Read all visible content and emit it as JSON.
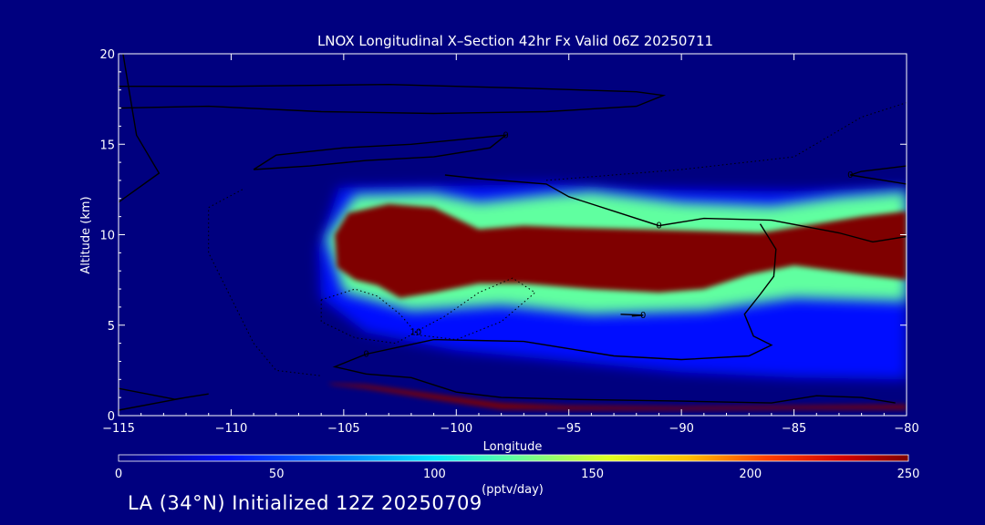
{
  "colors": {
    "background": "#00007f",
    "text": "#ffffff",
    "contour": "#000000"
  },
  "chart_data": {
    "type": "heatmap",
    "title": "LNOX Longitudinal X–Section 42hr  Fx Valid 06Z 20250711",
    "xlabel": "Longitude",
    "ylabel": "Altitude (km)",
    "xlim": [
      -115,
      -80
    ],
    "ylim": [
      0,
      20
    ],
    "x_ticks": [
      -115,
      -110,
      -105,
      -100,
      -95,
      -90,
      -85,
      -80
    ],
    "x_tick_labels": [
      "−115",
      "−110",
      "−105",
      "−100",
      "−95",
      "−90",
      "−85",
      "−80"
    ],
    "y_ticks": [
      0,
      5,
      10,
      15,
      20
    ],
    "y_tick_labels": [
      "0",
      "5",
      "10",
      "15",
      "20"
    ],
    "colorbar": {
      "min": 0,
      "max": 250,
      "ticks": [
        0,
        50,
        100,
        150,
        200,
        250
      ],
      "tick_labels": [
        "0",
        "50",
        "100",
        "150",
        "200",
        "250"
      ],
      "label": "(pptv/day)",
      "colormap": "rainbow (dark blue → cyan → yellow → dark red)"
    },
    "field_regions": [
      {
        "value": 250,
        "region": [
          [
            -105.4,
            10.0
          ],
          [
            -104.8,
            11.2
          ],
          [
            -103,
            11.7
          ],
          [
            -101,
            11.5
          ],
          [
            -99,
            10.3
          ],
          [
            -97,
            10.5
          ],
          [
            -95,
            10.4
          ],
          [
            -92,
            10.3
          ],
          [
            -89,
            10.2
          ],
          [
            -86.5,
            10.1
          ],
          [
            -84.5,
            10.5
          ],
          [
            -82,
            11.0
          ],
          [
            -80,
            11.3
          ],
          [
            -80,
            7.5
          ],
          [
            -82,
            7.8
          ],
          [
            -85,
            8.3
          ],
          [
            -87,
            7.8
          ],
          [
            -89,
            7.0
          ],
          [
            -91,
            6.8
          ],
          [
            -94,
            7.0
          ],
          [
            -97,
            7.3
          ],
          [
            -99,
            7.3
          ],
          [
            -101,
            6.8
          ],
          [
            -102.5,
            6.5
          ],
          [
            -103.5,
            7.2
          ],
          [
            -104.5,
            7.5
          ],
          [
            -105.3,
            8.2
          ]
        ]
      },
      {
        "value": 250,
        "region": [
          [
            -105.7,
            1.8
          ],
          [
            -104,
            1.7
          ],
          [
            -101,
            1.2
          ],
          [
            -98,
            0.7
          ],
          [
            -95,
            0.55
          ],
          [
            -90,
            0.5
          ],
          [
            -85,
            0.55
          ],
          [
            -80,
            0.6
          ],
          [
            -80,
            0.35
          ],
          [
            -85,
            0.35
          ],
          [
            -90,
            0.3
          ],
          [
            -95,
            0.3
          ],
          [
            -98,
            0.35
          ],
          [
            -101,
            0.9
          ],
          [
            -104,
            1.5
          ],
          [
            -105.5,
            1.7
          ]
        ]
      },
      {
        "value": 130,
        "region": [
          [
            -105.8,
            9.8
          ],
          [
            -104.5,
            12.2
          ],
          [
            -101,
            12.3
          ],
          [
            -99,
            11.8
          ],
          [
            -96,
            12.2
          ],
          [
            -94,
            12.4
          ],
          [
            -90,
            11.8
          ],
          [
            -86,
            11.6
          ],
          [
            -83,
            12.1
          ],
          [
            -80,
            12.4
          ],
          [
            -80,
            6.3
          ],
          [
            -85,
            6.5
          ],
          [
            -89,
            5.8
          ],
          [
            -94,
            5.6
          ],
          [
            -98,
            6.1
          ],
          [
            -102,
            5.8
          ],
          [
            -105,
            6.8
          ]
        ]
      },
      {
        "value": 70,
        "region": [
          [
            -106.1,
            9.2
          ],
          [
            -105.2,
            12.6
          ],
          [
            -100,
            12.7
          ],
          [
            -96,
            12.8
          ],
          [
            -92,
            12.5
          ],
          [
            -85,
            12.4
          ],
          [
            -80,
            12.6
          ],
          [
            -80,
            2.0
          ],
          [
            -85,
            2.1
          ],
          [
            -90,
            2.4
          ],
          [
            -95,
            3.0
          ],
          [
            -100,
            3.6
          ],
          [
            -104,
            4.6
          ],
          [
            -106,
            6.5
          ]
        ]
      }
    ],
    "contours": [
      {
        "label": "",
        "style": "solid",
        "points": [
          [
            -115,
            18.2
          ],
          [
            -110,
            18.2
          ],
          [
            -103,
            18.3
          ],
          [
            -97,
            18.1
          ],
          [
            -92,
            17.9
          ],
          [
            -90.8,
            17.7
          ],
          [
            -92,
            17.1
          ],
          [
            -96,
            16.8
          ],
          [
            -101,
            16.7
          ],
          [
            -106,
            16.8
          ],
          [
            -111,
            17.1
          ],
          [
            -115,
            17.0
          ]
        ]
      },
      {
        "label": "0",
        "style": "solid",
        "points": [
          [
            -109,
            13.6
          ],
          [
            -108,
            14.4
          ],
          [
            -105,
            14.8
          ],
          [
            -102,
            15.0
          ],
          [
            -99.5,
            15.3
          ],
          [
            -97.8,
            15.5
          ],
          [
            -98.5,
            14.8
          ],
          [
            -101,
            14.3
          ],
          [
            -104,
            14.1
          ],
          [
            -106.5,
            13.8
          ],
          [
            -109,
            13.6
          ]
        ]
      },
      {
        "label": "0",
        "style": "solid",
        "points": [
          [
            -100.5,
            13.3
          ],
          [
            -99,
            13.1
          ],
          [
            -96,
            12.8
          ],
          [
            -95,
            12.1
          ],
          [
            -93,
            11.3
          ],
          [
            -91,
            10.5
          ],
          [
            -89,
            10.9
          ],
          [
            -86,
            10.8
          ],
          [
            -83,
            10.1
          ],
          [
            -81.5,
            9.6
          ],
          [
            -80,
            9.9
          ]
        ]
      },
      {
        "label": "0",
        "style": "solid",
        "points": [
          [
            -80,
            13.8
          ],
          [
            -82,
            13.5
          ],
          [
            -82.5,
            13.3
          ],
          [
            -81,
            13.0
          ],
          [
            -80,
            12.8
          ]
        ]
      },
      {
        "label": "0",
        "style": "solid",
        "points": [
          [
            -86.5,
            10.6
          ],
          [
            -85.8,
            9.2
          ],
          [
            -85.9,
            7.7
          ],
          [
            -86.5,
            6.7
          ],
          [
            -87.2,
            5.6
          ],
          [
            -86.8,
            4.4
          ],
          [
            -86,
            3.9
          ],
          [
            -87,
            3.3
          ],
          [
            -90,
            3.1
          ],
          [
            -93,
            3.3
          ],
          [
            -97,
            4.1
          ],
          [
            -101,
            4.2
          ],
          [
            -104,
            3.4
          ],
          [
            -105.4,
            2.7
          ],
          [
            -104,
            2.3
          ],
          [
            -102,
            2.1
          ],
          [
            -100,
            1.3
          ],
          [
            -98,
            1.0
          ],
          [
            -95,
            0.9
          ],
          [
            -90,
            0.8
          ],
          [
            -86,
            0.7
          ],
          [
            -84,
            1.1
          ],
          [
            -82,
            1.0
          ],
          [
            -80.5,
            0.7
          ]
        ]
      },
      {
        "label": "0",
        "style": "solid",
        "points": [
          [
            -92.7,
            5.6
          ],
          [
            -91.7,
            5.55
          ],
          [
            -92.2,
            5.5
          ]
        ]
      },
      {
        "label": "10",
        "style": "dotted",
        "points": [
          [
            -106,
            6.4
          ],
          [
            -104.5,
            7.0
          ],
          [
            -103.5,
            6.6
          ],
          [
            -102.5,
            5.6
          ],
          [
            -101.8,
            4.6
          ],
          [
            -102.7,
            4.0
          ],
          [
            -104.5,
            4.3
          ],
          [
            -106,
            5.2
          ],
          [
            -106,
            6.4
          ]
        ]
      },
      {
        "label": "",
        "style": "dotted",
        "points": [
          [
            -102,
            4.5
          ],
          [
            -100.5,
            5.5
          ],
          [
            -99,
            6.8
          ],
          [
            -97.5,
            7.6
          ],
          [
            -96.5,
            6.8
          ],
          [
            -98,
            5.2
          ],
          [
            -100,
            4.2
          ],
          [
            -102,
            4.5
          ]
        ]
      },
      {
        "label": "",
        "style": "dotted",
        "points": [
          [
            -109.5,
            12.5
          ],
          [
            -111,
            11.5
          ],
          [
            -111,
            9
          ],
          [
            -110,
            6.5
          ],
          [
            -109,
            4
          ],
          [
            -108,
            2.5
          ],
          [
            -106,
            2.2
          ]
        ]
      },
      {
        "label": "",
        "style": "dotted",
        "points": [
          [
            -96,
            13.0
          ],
          [
            -90,
            13.6
          ],
          [
            -85,
            14.3
          ],
          [
            -82,
            16.5
          ],
          [
            -80,
            17.3
          ]
        ]
      },
      {
        "label": "",
        "style": "solid",
        "points": [
          [
            -115,
            0.3
          ],
          [
            -112,
            1.0
          ],
          [
            -111,
            1.2
          ],
          [
            -112.5,
            0.9
          ],
          [
            -115,
            1.5
          ]
        ]
      },
      {
        "label": "",
        "style": "solid",
        "points": [
          [
            -115,
            11.8
          ],
          [
            -113.2,
            13.4
          ],
          [
            -114.2,
            15.5
          ],
          [
            -114.8,
            20
          ]
        ]
      }
    ]
  },
  "footer_text": "LA (34°N) Initialized 12Z 20250709"
}
